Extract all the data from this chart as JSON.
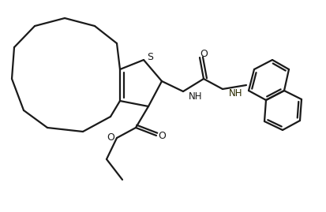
{
  "bg_color": "#ffffff",
  "line_color": "#1a1a1a",
  "lw": 1.6,
  "fig_w": 4.13,
  "fig_h": 2.69,
  "dpi": 100,
  "S_label": "S",
  "O_labels": [
    "O",
    "O"
  ],
  "NH_labels": [
    "NH",
    "NH"
  ]
}
